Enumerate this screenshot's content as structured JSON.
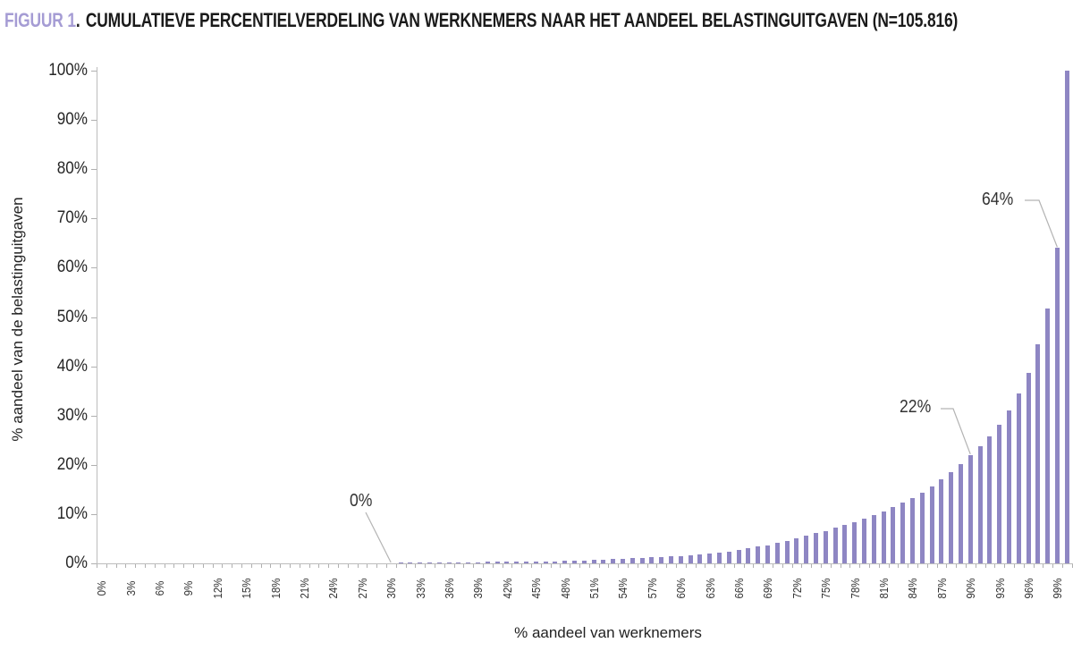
{
  "figure": {
    "label": "FIGUUR 1",
    "separator": ".",
    "title": "CUMULATIEVE PERCENTIELVERDELING VAN WERKNEMERS NAAR HET AANDEEL BELASTINGUITGAVEN (N=105.816)"
  },
  "colors": {
    "bar": "#8e86c3",
    "figure_label": "#a59cd4",
    "axis": "#bcbcbc",
    "leader_line": "#b3b3b3",
    "text": "#1a1a1a"
  },
  "chart_data": {
    "type": "bar",
    "title": "FIGUUR 1. CUMULATIEVE PERCENTIELVERDELING VAN WERKNEMERS NAAR HET AANDEEL BELASTINGUITGAVEN (N=105.816)",
    "xlabel": "% aandeel van werknemers",
    "ylabel": "% aandeel van de belastinguitgaven",
    "ylim": [
      0,
      100
    ],
    "xlim": [
      0,
      100
    ],
    "grid": false,
    "legend": false,
    "y_tick_labels": [
      "0%",
      "10%",
      "20%",
      "30%",
      "40%",
      "50%",
      "60%",
      "70%",
      "80%",
      "90%",
      "100%"
    ],
    "x_tick_label_step": 3,
    "x_tick_label_suffix": "%",
    "x": [
      0,
      1,
      2,
      3,
      4,
      5,
      6,
      7,
      8,
      9,
      10,
      11,
      12,
      13,
      14,
      15,
      16,
      17,
      18,
      19,
      20,
      21,
      22,
      23,
      24,
      25,
      26,
      27,
      28,
      29,
      30,
      31,
      32,
      33,
      34,
      35,
      36,
      37,
      38,
      39,
      40,
      41,
      42,
      43,
      44,
      45,
      46,
      47,
      48,
      49,
      50,
      51,
      52,
      53,
      54,
      55,
      56,
      57,
      58,
      59,
      60,
      61,
      62,
      63,
      64,
      65,
      66,
      67,
      68,
      69,
      70,
      71,
      72,
      73,
      74,
      75,
      76,
      77,
      78,
      79,
      80,
      81,
      82,
      83,
      84,
      85,
      86,
      87,
      88,
      89,
      90,
      91,
      92,
      93,
      94,
      95,
      96,
      97,
      98,
      99,
      100
    ],
    "values": [
      0,
      0,
      0,
      0,
      0,
      0,
      0,
      0,
      0,
      0,
      0,
      0,
      0,
      0,
      0,
      0,
      0,
      0,
      0,
      0,
      0,
      0,
      0,
      0,
      0,
      0,
      0,
      0,
      0,
      0,
      0,
      0.1,
      0.1,
      0.1,
      0.15,
      0.15,
      0.2,
      0.2,
      0.2,
      0.25,
      0.3,
      0.3,
      0.3,
      0.3,
      0.35,
      0.35,
      0.4,
      0.45,
      0.5,
      0.55,
      0.6,
      0.7,
      0.75,
      0.85,
      0.9,
      1.0,
      1.1,
      1.2,
      1.3,
      1.4,
      1.5,
      1.7,
      1.8,
      2.0,
      2.1,
      2.4,
      2.7,
      3.0,
      3.4,
      3.7,
      4.1,
      4.5,
      5.0,
      5.6,
      6.1,
      6.6,
      7.2,
      7.8,
      8.4,
      9.1,
      9.8,
      10.6,
      11.4,
      12.3,
      13.3,
      14.4,
      15.6,
      17.0,
      18.5,
      20.2,
      22,
      23.8,
      25.8,
      28.2,
      31.0,
      34.5,
      38.7,
      44.4,
      51.8,
      64,
      100
    ],
    "annotations": [
      {
        "label": "0%",
        "x": 30,
        "y": 0
      },
      {
        "label": "22%",
        "x": 90,
        "y": 22
      },
      {
        "label": "64%",
        "x": 99,
        "y": 64
      }
    ]
  }
}
